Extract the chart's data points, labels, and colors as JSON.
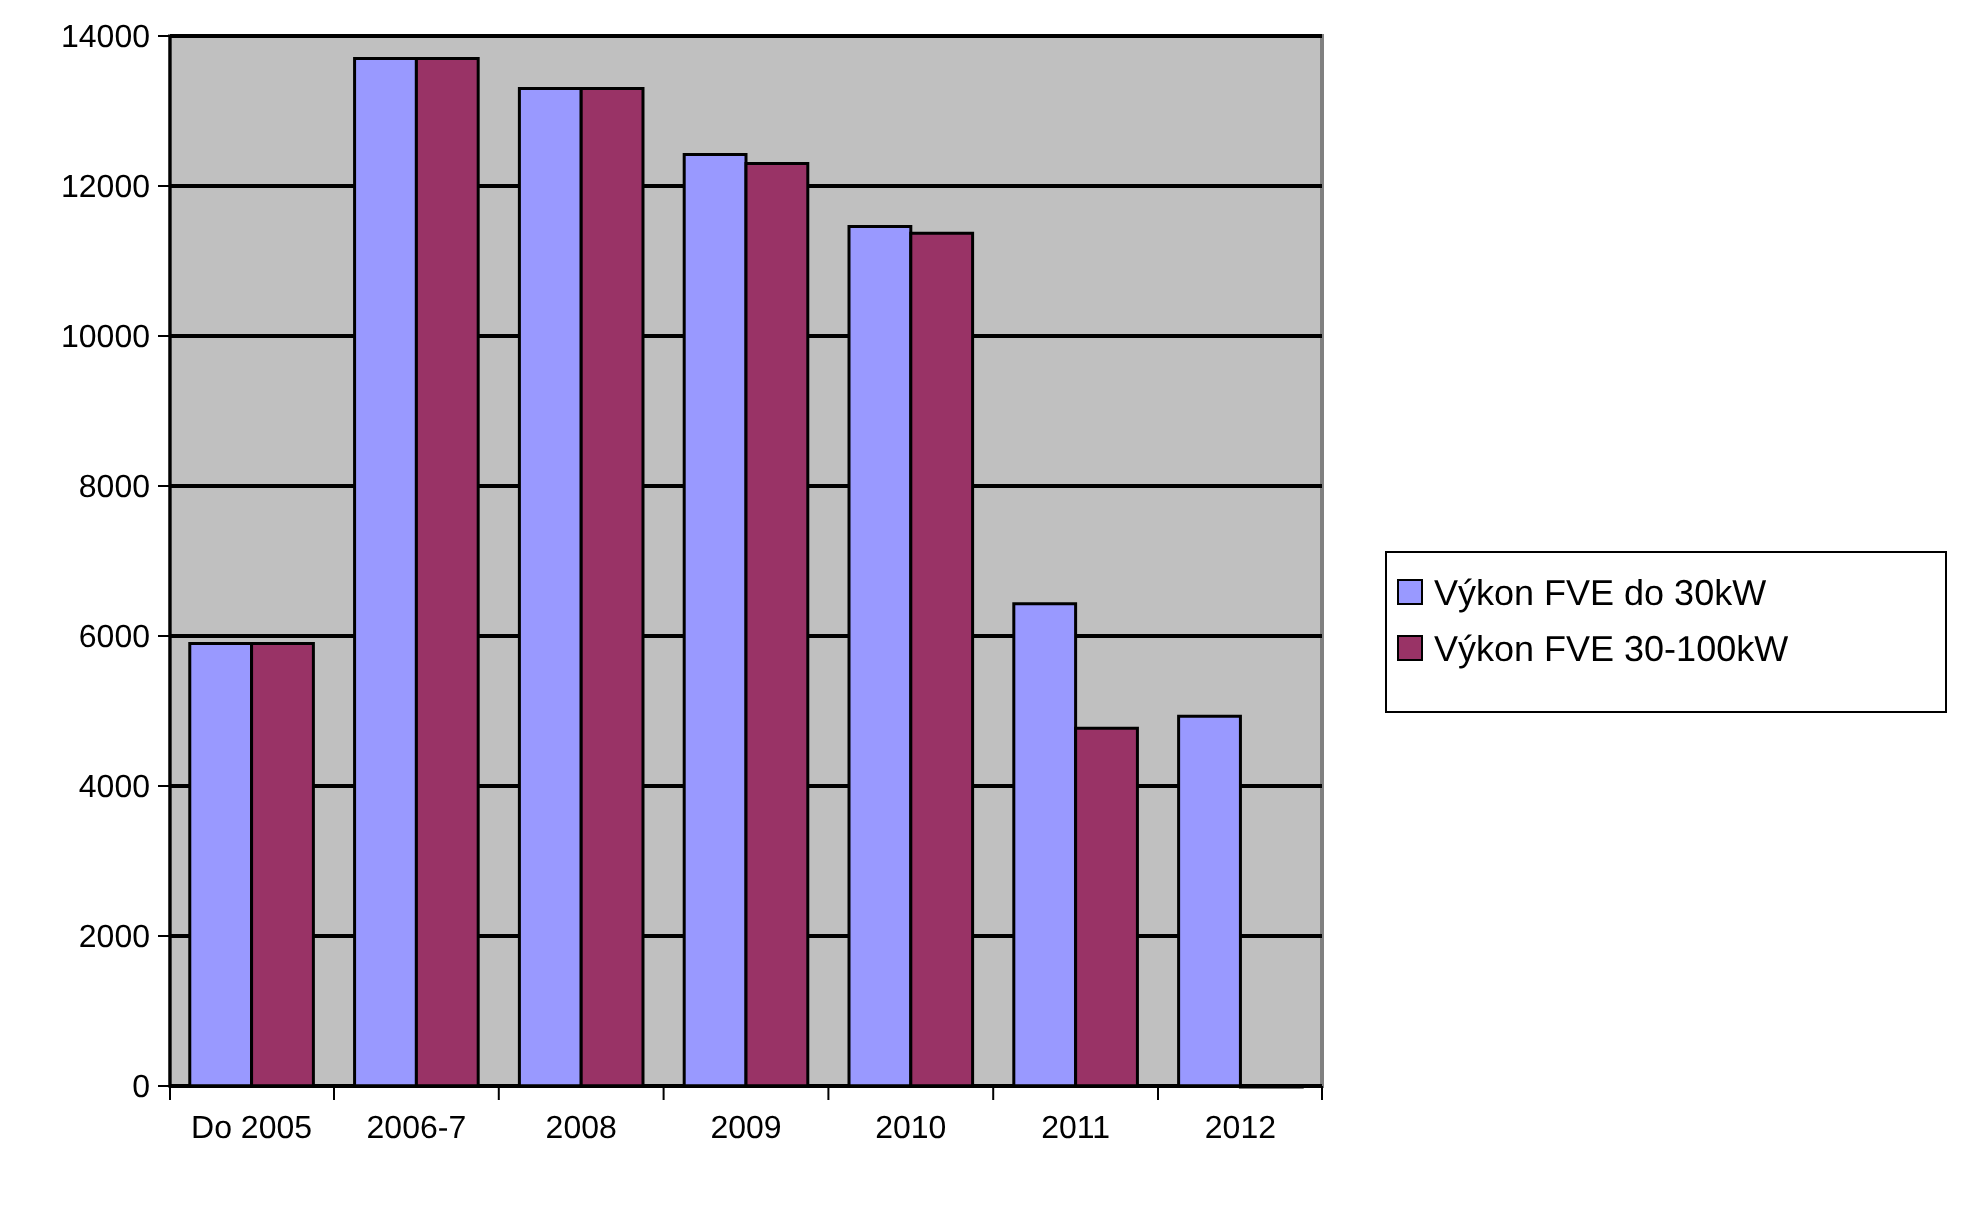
{
  "chart_data": {
    "type": "bar",
    "categories": [
      "Do 2005",
      "2006-7",
      "2008",
      "2009",
      "2010",
      "2011",
      "2012"
    ],
    "series": [
      {
        "name": "Výkon FVE do 30kW",
        "color": "#9999ff",
        "values": [
          5900,
          13700,
          13300,
          12420,
          11460,
          6430,
          4930
        ]
      },
      {
        "name": "Výkon FVE 30-100kW",
        "color": "#993366",
        "values": [
          5900,
          13700,
          13300,
          12300,
          11370,
          4770,
          0
        ]
      }
    ],
    "ylim": [
      0,
      14000
    ],
    "yticks": [
      0,
      2000,
      4000,
      6000,
      8000,
      10000,
      12000,
      14000
    ],
    "grid": "y",
    "legend": "right"
  }
}
